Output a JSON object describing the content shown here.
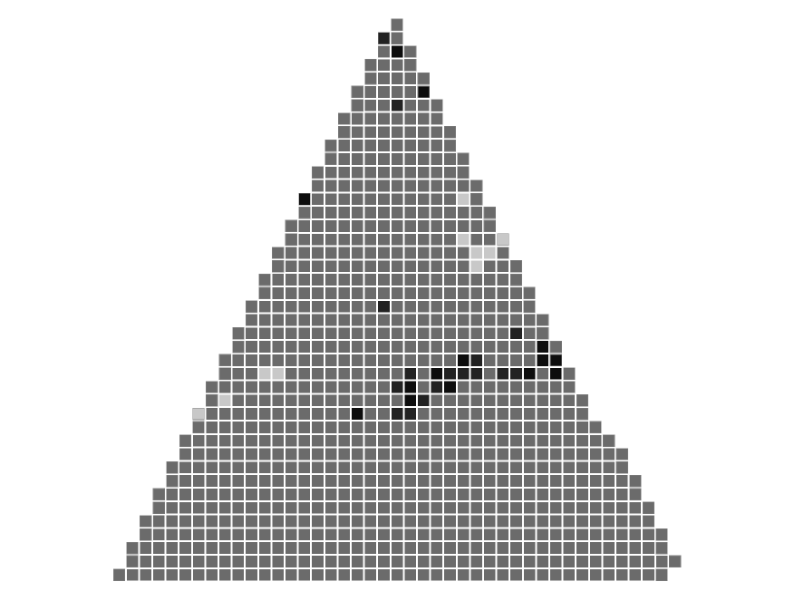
{
  "colors": {
    "background": "#ffffff",
    "tile": "#6b6b6b",
    "tile_edge": "#858585",
    "tile_light": "#c8c8c8",
    "tile_dark": "#222222",
    "tile_darkest": "#0d0d0d"
  },
  "mosaic": {
    "rows": 42,
    "cols": 57,
    "center_col": 28,
    "ragged_right_rows": [
      31,
      32,
      33,
      34,
      35,
      36,
      37,
      38,
      39,
      40,
      41
    ],
    "blank_tiles": [
      [
        41,
        5
      ]
    ],
    "cells": [
      [
        1,
        27,
        "dark"
      ],
      [
        2,
        28,
        "darkest"
      ],
      [
        4,
        31,
        "dark"
      ],
      [
        5,
        30,
        "darkest"
      ],
      [
        6,
        24,
        "darkest"
      ],
      [
        6,
        28,
        "dark"
      ],
      [
        10,
        36,
        "light"
      ],
      [
        11,
        36,
        "light"
      ],
      [
        12,
        35,
        "light"
      ],
      [
        13,
        20,
        "darkest"
      ],
      [
        13,
        21,
        "darkest"
      ],
      [
        13,
        33,
        "light"
      ],
      [
        14,
        20,
        "darkest"
      ],
      [
        15,
        17,
        "light"
      ],
      [
        15,
        37,
        "light"
      ],
      [
        15,
        39,
        "light"
      ],
      [
        16,
        14,
        "light"
      ],
      [
        16,
        33,
        "light"
      ],
      [
        16,
        36,
        "light"
      ],
      [
        17,
        34,
        "light"
      ],
      [
        17,
        35,
        "light"
      ],
      [
        18,
        34,
        "light"
      ],
      [
        21,
        27,
        "dark"
      ],
      [
        23,
        37,
        "dark"
      ],
      [
        24,
        39,
        "darkest"
      ],
      [
        25,
        33,
        "darkest"
      ],
      [
        25,
        34,
        "dark"
      ],
      [
        25,
        39,
        "darkest"
      ],
      [
        25,
        40,
        "darkest"
      ],
      [
        25,
        54,
        "darkest"
      ],
      [
        26,
        18,
        "light"
      ],
      [
        26,
        19,
        "light"
      ],
      [
        26,
        29,
        "dark"
      ],
      [
        26,
        31,
        "darkest"
      ],
      [
        26,
        32,
        "dark"
      ],
      [
        26,
        33,
        "dark"
      ],
      [
        26,
        34,
        "dark"
      ],
      [
        26,
        36,
        "dark"
      ],
      [
        26,
        37,
        "dark"
      ],
      [
        26,
        38,
        "darkest"
      ],
      [
        26,
        40,
        "darkest"
      ],
      [
        27,
        10,
        "dark"
      ],
      [
        27,
        28,
        "dark"
      ],
      [
        27,
        29,
        "darkest"
      ],
      [
        27,
        31,
        "dark"
      ],
      [
        27,
        32,
        "darkest"
      ],
      [
        28,
        15,
        "light"
      ],
      [
        28,
        29,
        "darkest"
      ],
      [
        28,
        30,
        "dark"
      ],
      [
        29,
        12,
        "light"
      ],
      [
        29,
        13,
        "light"
      ],
      [
        29,
        25,
        "darkest"
      ],
      [
        29,
        28,
        "dark"
      ],
      [
        29,
        29,
        "dark"
      ]
    ]
  }
}
